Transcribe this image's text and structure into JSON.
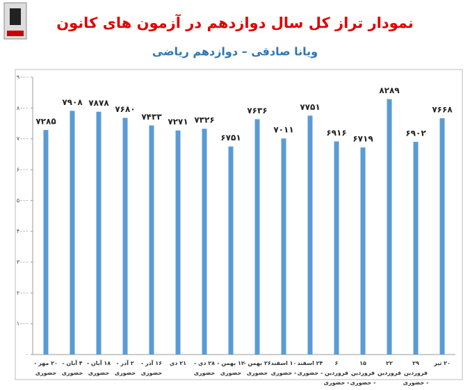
{
  "title": "نمودار تراز کل سال دوازدهم در آزمون های کانون",
  "subtitle": "ویانا صادقی – دوازدهم ریاضی",
  "chart_data": {
    "type": "bar",
    "categories": [
      "۲۰ مهر - حضوری",
      "۴ آبان - حضوری",
      "۱۸ آبان - حضوری",
      "۲ آذر - حضوری",
      "۱۶ آذر - حضوری",
      "۲۱ دی",
      "۲۸ دی - حضوری",
      "۱۲ بهمن - حضوری",
      "۲۶ بهمن - حضوری",
      "۱۰ اسفند - حضوری",
      "۲۴ اسفند - حضوری",
      "۶ فروردین - حضوری",
      "۱۵ فروردین - حضوری",
      "۲۲ فروردین",
      "۲۹ فروردین - حضوری",
      "۲۰ تیر"
    ],
    "values": [
      7285,
      7908,
      7878,
      7680,
      7433,
      7271,
      7326,
      6751,
      7636,
      7011,
      7751,
      6916,
      6719,
      8289,
      6902,
      7668
    ],
    "value_labels": [
      "۷۲۸۵",
      "۷۹۰۸",
      "۷۸۷۸",
      "۷۶۸۰",
      "۷۴۳۳",
      "۷۲۷۱",
      "۷۳۲۶",
      "۶۷۵۱",
      "۷۶۳۶",
      "۷۰۱۱",
      "۷۷۵۱",
      "۶۹۱۶",
      "۶۷۱۹",
      "۸۲۸۹",
      "۶۹۰۲",
      "۷۶۶۸"
    ],
    "color": "#5b9bd5",
    "ylim": [
      0,
      9000
    ],
    "yticks": [
      {
        "value": 0,
        "label": "۰"
      },
      {
        "value": 1000,
        "label": "۱۰۰۰"
      },
      {
        "value": 2000,
        "label": "۲۰۰۰"
      },
      {
        "value": 3000,
        "label": "۳۰۰۰"
      },
      {
        "value": 4000,
        "label": "۴۰۰۰"
      },
      {
        "value": 5000,
        "label": "۵۰۰۰"
      },
      {
        "value": 6000,
        "label": "۶۰۰۰"
      },
      {
        "value": 7000,
        "label": "۷۰۰۰"
      },
      {
        "value": 8000,
        "label": "۸۰۰۰"
      },
      {
        "value": 9000,
        "label": "۹۰۰۰"
      }
    ]
  }
}
